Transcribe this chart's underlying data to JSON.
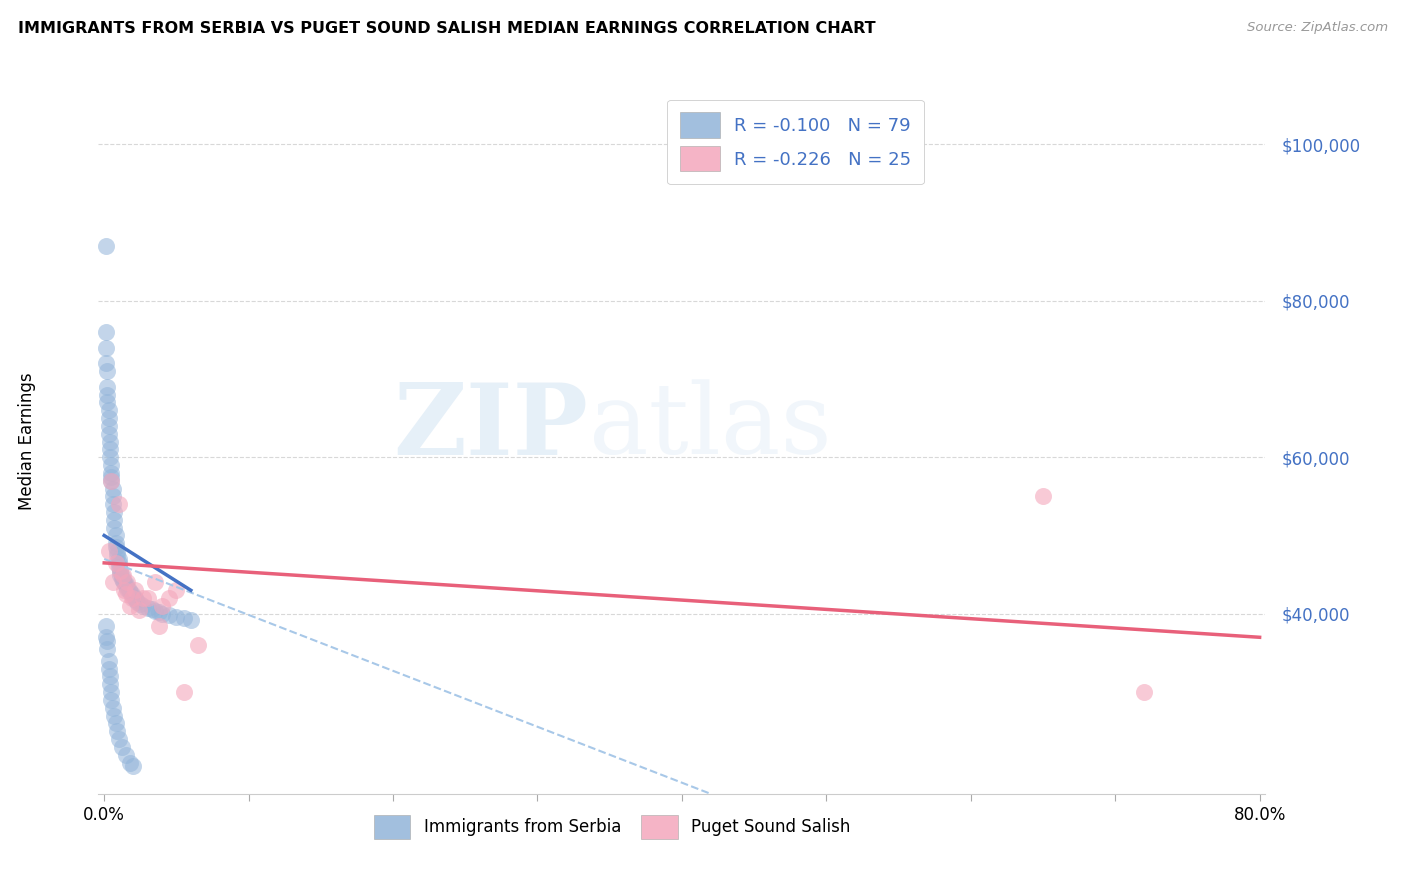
{
  "title": "IMMIGRANTS FROM SERBIA VS PUGET SOUND SALISH MEDIAN EARNINGS CORRELATION CHART",
  "source": "Source: ZipAtlas.com",
  "ylabel": "Median Earnings",
  "watermark": "ZIPatlas",
  "xlim_min": -0.004,
  "xlim_max": 0.804,
  "ylim_min": 17000,
  "ylim_max": 107000,
  "yticks": [
    40000,
    60000,
    80000,
    100000
  ],
  "ytick_labels": [
    "$40,000",
    "$60,000",
    "$80,000",
    "$100,000"
  ],
  "xtick_vals": [
    0.0,
    0.1,
    0.2,
    0.3,
    0.4,
    0.5,
    0.6,
    0.7,
    0.8
  ],
  "xtick_show": [
    "0.0%",
    "",
    "",
    "",
    "",
    "",
    "",
    "",
    "80.0%"
  ],
  "serbia_R": "-0.100",
  "serbia_N": "79",
  "salish_R": "-0.226",
  "salish_N": "25",
  "serbia_scatter_color": "#92B4D9",
  "salish_scatter_color": "#F4A7BC",
  "serbia_line_color": "#4472C4",
  "salish_line_color": "#E8607A",
  "dashed_color": "#A8C8E8",
  "grid_color": "#D8D8D8",
  "serbia_x": [
    0.001,
    0.001,
    0.001,
    0.001,
    0.002,
    0.002,
    0.002,
    0.002,
    0.003,
    0.003,
    0.003,
    0.003,
    0.004,
    0.004,
    0.004,
    0.005,
    0.005,
    0.005,
    0.005,
    0.006,
    0.006,
    0.006,
    0.007,
    0.007,
    0.007,
    0.008,
    0.008,
    0.008,
    0.009,
    0.009,
    0.01,
    0.01,
    0.01,
    0.011,
    0.011,
    0.012,
    0.012,
    0.013,
    0.014,
    0.015,
    0.015,
    0.016,
    0.017,
    0.018,
    0.019,
    0.02,
    0.021,
    0.022,
    0.023,
    0.025,
    0.027,
    0.03,
    0.033,
    0.035,
    0.038,
    0.04,
    0.045,
    0.05,
    0.055,
    0.06,
    0.001,
    0.001,
    0.002,
    0.002,
    0.003,
    0.003,
    0.004,
    0.004,
    0.005,
    0.005,
    0.006,
    0.007,
    0.008,
    0.009,
    0.01,
    0.012,
    0.015,
    0.018,
    0.02
  ],
  "serbia_y": [
    87000,
    76000,
    74000,
    72000,
    71000,
    69000,
    68000,
    67000,
    66000,
    65000,
    64000,
    63000,
    62000,
    61000,
    60000,
    59000,
    58000,
    57500,
    57000,
    56000,
    55000,
    54000,
    53000,
    52000,
    51000,
    50000,
    49000,
    48500,
    48000,
    47500,
    47000,
    46500,
    46000,
    45500,
    45000,
    44800,
    44500,
    44200,
    44000,
    43800,
    43500,
    43200,
    43000,
    42800,
    42500,
    42200,
    42000,
    41800,
    41500,
    41200,
    41000,
    40800,
    40600,
    40400,
    40200,
    40000,
    39800,
    39600,
    39400,
    39200,
    38500,
    37000,
    36500,
    35500,
    34000,
    33000,
    32000,
    31000,
    30000,
    29000,
    28000,
    27000,
    26000,
    25000,
    24000,
    23000,
    22000,
    21000,
    20500
  ],
  "salish_x": [
    0.003,
    0.005,
    0.006,
    0.008,
    0.01,
    0.011,
    0.013,
    0.014,
    0.015,
    0.016,
    0.018,
    0.019,
    0.021,
    0.024,
    0.027,
    0.03,
    0.035,
    0.038,
    0.04,
    0.045,
    0.05,
    0.055,
    0.065,
    0.65,
    0.72
  ],
  "salish_y": [
    48000,
    57000,
    44000,
    46500,
    54000,
    45500,
    45000,
    43000,
    42500,
    44000,
    41000,
    42000,
    43000,
    40500,
    42000,
    42000,
    44000,
    38500,
    41000,
    42000,
    43000,
    30000,
    36000,
    55000,
    30000
  ],
  "salish_line_x0": 0.0,
  "salish_line_x1": 0.8,
  "salish_line_y0": 46500,
  "salish_line_y1": 37000,
  "serbia_line_x0": 0.0,
  "serbia_line_x1": 0.06,
  "serbia_line_y0": 50000,
  "serbia_line_y1": 43000,
  "dashed_line_x0": 0.0,
  "dashed_line_x1": 0.42,
  "dashed_line_y0": 47000,
  "dashed_line_y1": 17000
}
